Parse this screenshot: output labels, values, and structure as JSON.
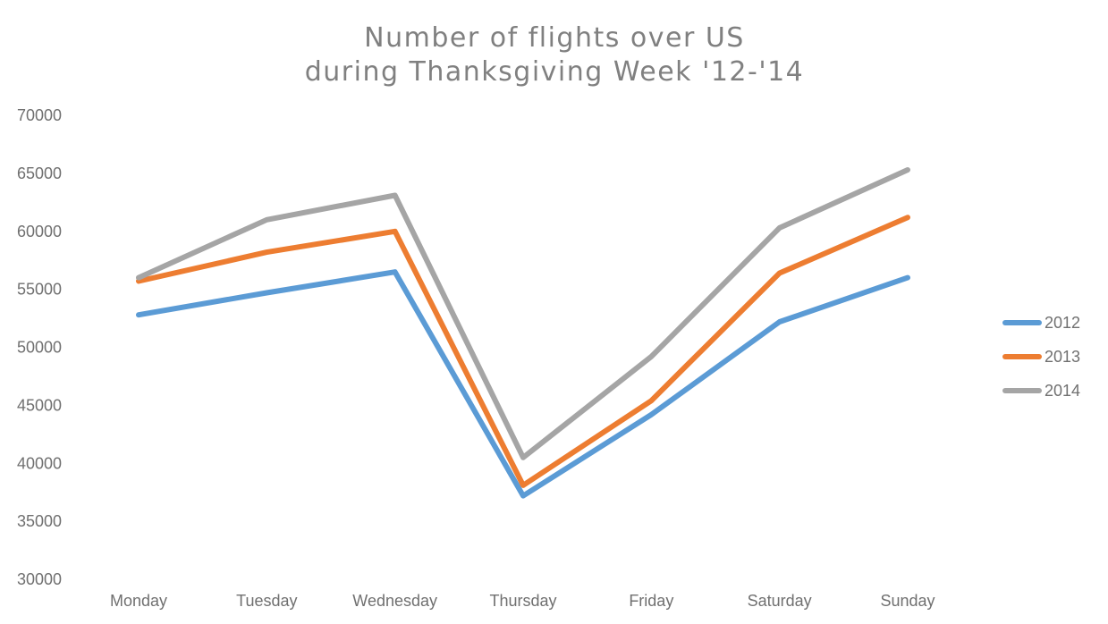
{
  "chart_data": {
    "type": "line",
    "title": [
      "Number of flights over US",
      "during Thanksgiving Week '12-'14"
    ],
    "xlabel": "",
    "ylabel": "",
    "categories": [
      "Monday",
      "Tuesday",
      "Wednesday",
      "Thursday",
      "Friday",
      "Saturday",
      "Sunday"
    ],
    "ylim": [
      30000,
      70000
    ],
    "yticks": [
      70000,
      65000,
      60000,
      55000,
      50000,
      45000,
      40000,
      35000,
      30000
    ],
    "grid": false,
    "legend_position": "right",
    "series": [
      {
        "name": "2012",
        "color": "#5b9bd5",
        "values": [
          52800,
          54700,
          56500,
          37200,
          44200,
          52200,
          56000
        ]
      },
      {
        "name": "2013",
        "color": "#ed7d31",
        "values": [
          55700,
          58200,
          60000,
          38100,
          45400,
          56400,
          61200
        ]
      },
      {
        "name": "2014",
        "color": "#a5a5a5",
        "values": [
          56000,
          61000,
          63100,
          40500,
          49200,
          60300,
          65300
        ]
      }
    ]
  }
}
